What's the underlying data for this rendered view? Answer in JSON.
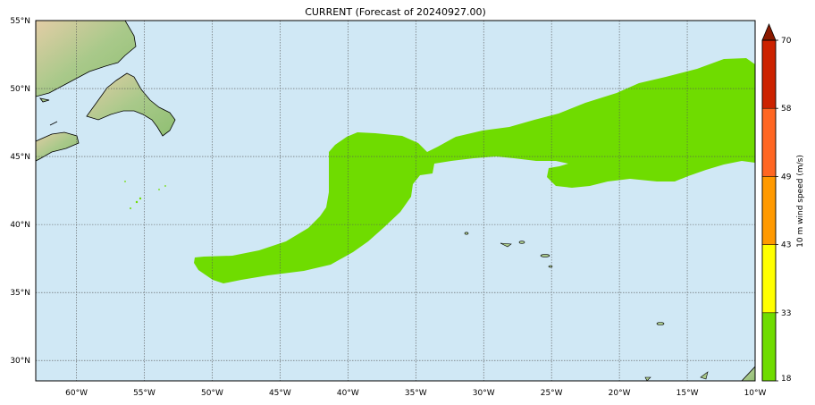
{
  "title": "CURRENT (Forecast of 20240927.00)",
  "map": {
    "lon_range": [
      -63,
      -10
    ],
    "lat_range": [
      28.5,
      55
    ],
    "lon_ticks": [
      {
        "value": -60,
        "label": "60°W"
      },
      {
        "value": -55,
        "label": "55°W"
      },
      {
        "value": -50,
        "label": "50°W"
      },
      {
        "value": -45,
        "label": "45°W"
      },
      {
        "value": -40,
        "label": "40°W"
      },
      {
        "value": -35,
        "label": "35°W"
      },
      {
        "value": -30,
        "label": "30°W"
      },
      {
        "value": -25,
        "label": "25°W"
      },
      {
        "value": -20,
        "label": "20°W"
      },
      {
        "value": -15,
        "label": "15°W"
      },
      {
        "value": -10,
        "label": "10°W"
      }
    ],
    "lat_ticks": [
      {
        "value": 55,
        "label": "55°N"
      },
      {
        "value": 50,
        "label": "50°N"
      },
      {
        "value": 45,
        "label": "45°N"
      },
      {
        "value": 40,
        "label": "40°N"
      },
      {
        "value": 35,
        "label": "35°N"
      },
      {
        "value": 30,
        "label": "30°N"
      }
    ],
    "ocean_color": "#d0e8f5",
    "land_color": "#a9c98a",
    "wind_field_color": "#6fdc00",
    "gridlines": true
  },
  "colorbar": {
    "label": "10 m wind speed (m/s)",
    "extend": "max",
    "bounds": [
      18,
      33,
      43,
      49,
      58,
      70
    ],
    "tick_labels": [
      "18",
      "33",
      "43",
      "49",
      "58",
      "70"
    ],
    "colors": [
      "#6fdc00",
      "#ffff00",
      "#ff9900",
      "#ff6622",
      "#cc2200"
    ],
    "extend_color": "#8b1a00"
  }
}
